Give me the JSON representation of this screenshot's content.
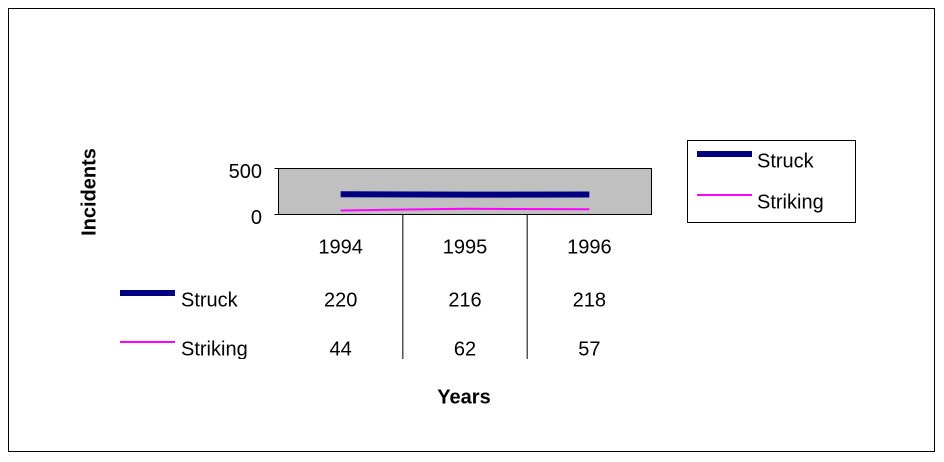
{
  "chart_data": {
    "type": "line",
    "y_label": "Incidents",
    "x_label": "Years",
    "categories": [
      "1994",
      "1995",
      "1996"
    ],
    "series": [
      {
        "name": "Struck",
        "color": "#000080",
        "values": [
          220,
          216,
          218
        ]
      },
      {
        "name": "Striking",
        "color": "#ff00ff",
        "values": [
          44,
          62,
          57
        ]
      }
    ],
    "ylim": [
      0,
      500
    ],
    "yticks": [
      0,
      500
    ],
    "legend": "right",
    "data_table": true
  }
}
